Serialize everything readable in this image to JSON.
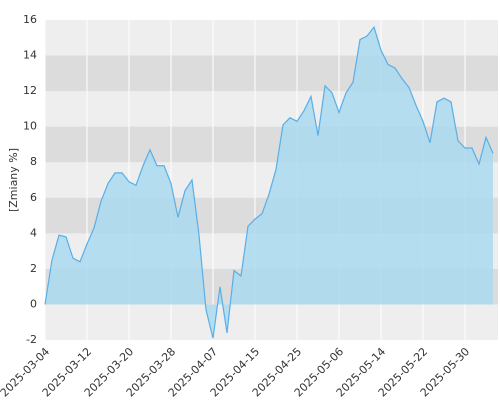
{
  "chart_data": {
    "type": "area",
    "y_label": "[Zmiany %]",
    "categories": [
      "2025-03-04",
      null,
      null,
      null,
      null,
      null,
      "2025-03-12",
      null,
      null,
      null,
      null,
      null,
      "2025-03-20",
      null,
      null,
      null,
      null,
      null,
      "2025-03-28",
      null,
      null,
      null,
      null,
      null,
      "2025-04-07",
      null,
      null,
      null,
      null,
      null,
      "2025-04-15",
      null,
      null,
      null,
      null,
      null,
      "2025-04-25",
      null,
      null,
      null,
      null,
      null,
      "2025-05-06",
      null,
      null,
      null,
      null,
      null,
      "2025-05-14",
      null,
      null,
      null,
      null,
      null,
      "2025-05-22",
      null,
      null,
      null,
      null,
      null,
      "2025-05-30",
      null,
      null,
      null,
      null
    ],
    "values": [
      0,
      2.5,
      3.9,
      3.8,
      2.6,
      2.4,
      3.4,
      4.3,
      5.8,
      6.8,
      7.4,
      7.4,
      6.9,
      6.7,
      7.8,
      8.7,
      7.8,
      7.8,
      6.8,
      4.9,
      6.4,
      7.0,
      3.9,
      -0.3,
      -1.9,
      1.0,
      -1.6,
      1.9,
      1.6,
      4.4,
      4.8,
      5.1,
      6.2,
      7.6,
      10.1,
      10.5,
      10.3,
      10.9,
      11.7,
      9.5,
      12.3,
      11.9,
      10.8,
      11.9,
      12.5,
      14.9,
      15.1,
      15.6,
      14.3,
      13.5,
      13.3,
      12.7,
      12.2,
      11.2,
      10.3,
      9.1,
      11.4,
      11.6,
      11.4,
      9.2,
      8.8,
      8.8,
      7.9,
      9.4,
      8.5
    ],
    "color": "#5aaee8",
    "fill": "#a9d9ee",
    "ylim": [
      -2,
      16
    ],
    "yticks": [
      -2,
      0,
      2,
      4,
      6,
      8,
      10,
      12,
      14,
      16
    ],
    "bands": true,
    "grid": true
  }
}
